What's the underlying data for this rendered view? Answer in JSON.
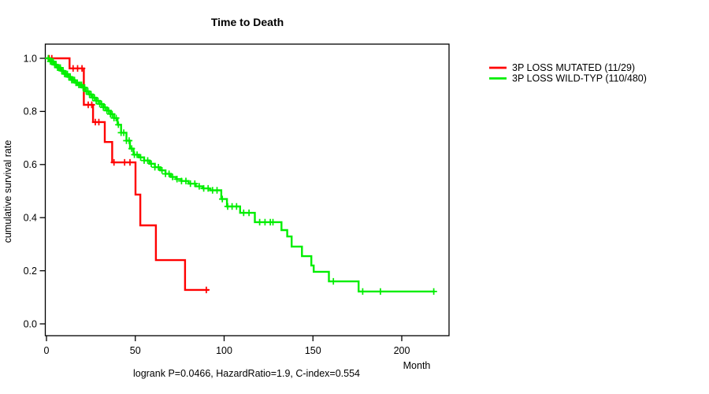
{
  "chart_data": {
    "type": "line",
    "subtype": "kaplan-meier-step",
    "title": "Time to Death",
    "xlabel": "Month",
    "ylabel": "cumulative survival rate",
    "footnote": "logrank P=0.0466, HazardRatio=1.9, C-index=0.554",
    "xlim": [
      0,
      226
    ],
    "ylim": [
      0.0,
      1.0
    ],
    "x_ticks": [
      0,
      50,
      100,
      150,
      200
    ],
    "y_ticks": [
      0.0,
      0.2,
      0.4,
      0.6,
      0.8,
      1.0
    ],
    "grid": false,
    "legend_position": "right-outside",
    "axis_color": "#000000",
    "background_color": "#ffffff",
    "series": [
      {
        "label": "3P LOSS MUTATED (11/29)",
        "color": "#ff0000",
        "events_over_n": "11/29",
        "steps": [
          [
            0,
            1.0
          ],
          [
            13,
            0.962
          ],
          [
            21,
            0.825
          ],
          [
            26.2,
            0.76
          ],
          [
            32.8,
            0.685
          ],
          [
            37,
            0.608
          ],
          [
            50.1,
            0.487
          ],
          [
            52.8,
            0.371
          ],
          [
            61.6,
            0.24
          ],
          [
            78,
            0.128
          ]
        ],
        "end_time": 91.4,
        "censor_times": [
          1.5,
          3,
          15,
          17.5,
          20,
          23.5,
          25.5,
          27.5,
          29.5,
          38,
          44,
          47,
          90
        ]
      },
      {
        "label": "3P LOSS WILD-TYP (110/480)",
        "color": "#00ee00",
        "events_over_n": "110/480",
        "steps": [
          [
            0,
            1.0
          ],
          [
            2,
            0.988
          ],
          [
            4,
            0.976
          ],
          [
            6,
            0.965
          ],
          [
            8,
            0.953
          ],
          [
            10,
            0.941
          ],
          [
            12,
            0.93
          ],
          [
            14,
            0.918
          ],
          [
            16,
            0.908
          ],
          [
            18,
            0.9
          ],
          [
            20,
            0.89
          ],
          [
            22,
            0.876
          ],
          [
            24,
            0.864
          ],
          [
            26,
            0.852
          ],
          [
            28,
            0.84
          ],
          [
            30,
            0.828
          ],
          [
            32,
            0.815
          ],
          [
            34,
            0.803
          ],
          [
            36,
            0.79
          ],
          [
            38,
            0.775
          ],
          [
            40,
            0.75
          ],
          [
            42,
            0.72
          ],
          [
            45,
            0.69
          ],
          [
            47,
            0.66
          ],
          [
            49,
            0.637
          ],
          [
            52,
            0.627
          ],
          [
            55,
            0.615
          ],
          [
            58,
            0.603
          ],
          [
            61,
            0.59
          ],
          [
            64,
            0.578
          ],
          [
            67,
            0.565
          ],
          [
            70,
            0.553
          ],
          [
            73,
            0.545
          ],
          [
            76,
            0.538
          ],
          [
            80,
            0.528
          ],
          [
            84,
            0.518
          ],
          [
            88,
            0.51
          ],
          [
            92,
            0.503
          ],
          [
            98.4,
            0.47
          ],
          [
            101.6,
            0.442
          ],
          [
            109,
            0.418
          ],
          [
            117.3,
            0.383
          ],
          [
            132.3,
            0.353
          ],
          [
            135.5,
            0.329
          ],
          [
            138,
            0.291
          ],
          [
            143.8,
            0.255
          ],
          [
            149.1,
            0.22
          ],
          [
            150.4,
            0.196
          ],
          [
            159,
            0.16
          ],
          [
            175.7,
            0.122
          ]
        ],
        "end_time": 218.6,
        "censor_times": [
          1,
          2.2,
          3,
          3.8,
          4.6,
          5.4,
          6.2,
          7,
          7.8,
          8.6,
          9.4,
          10.2,
          11,
          11.8,
          12.6,
          13.4,
          14.2,
          15,
          15.8,
          16.6,
          17.4,
          18.2,
          19,
          19.8,
          20.6,
          21.5,
          22.4,
          23.3,
          24.2,
          25.1,
          26,
          27,
          28,
          29,
          30,
          31,
          32,
          33,
          34,
          35,
          36,
          37,
          38,
          39.2,
          40.5,
          42,
          43.5,
          45,
          46.5,
          48,
          49.5,
          51,
          53,
          55,
          57,
          59,
          61,
          63,
          65,
          67,
          69,
          71,
          73.5,
          76,
          78.5,
          81,
          83.5,
          86,
          88.5,
          91,
          93.5,
          96,
          99,
          102,
          104.5,
          107,
          111,
          114,
          120,
          123,
          126,
          127.5,
          161.5,
          178,
          188,
          218
        ]
      }
    ]
  }
}
